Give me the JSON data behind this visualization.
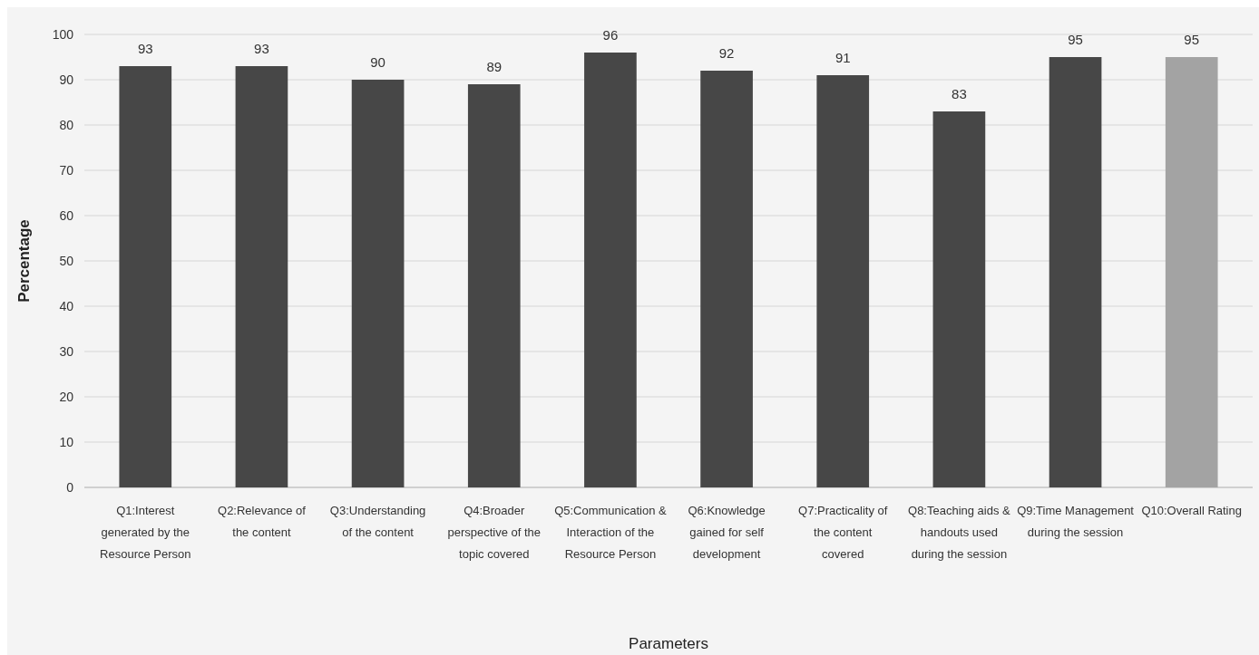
{
  "chart_data": {
    "type": "bar",
    "xlabel": "Parameters",
    "ylabel": "Percentage",
    "categories": [
      "Q1:Interest generated by the Resource Person",
      "Q2:Relevance of the content",
      "Q3:Understanding of the content",
      "Q4:Broader perspective of the topic covered",
      "Q5:Communication & Interaction of the Resource Person",
      "Q6:Knowledge gained for self development",
      "Q7:Practicality of the content covered",
      "Q8:Teaching aids & handouts used during the session",
      "Q9:Time Management during the session",
      "Q10:Overall Rating"
    ],
    "values": [
      93,
      93,
      90,
      89,
      96,
      92,
      91,
      83,
      95,
      95
    ],
    "colors": [
      "#474747",
      "#474747",
      "#474747",
      "#474747",
      "#474747",
      "#474747",
      "#474747",
      "#474747",
      "#474747",
      "#a3a3a3"
    ],
    "ylim": [
      0,
      100
    ],
    "yticks": [
      0,
      10,
      20,
      30,
      40,
      50,
      60,
      70,
      80,
      90,
      100
    ],
    "grid": "y",
    "data_labels": true
  }
}
